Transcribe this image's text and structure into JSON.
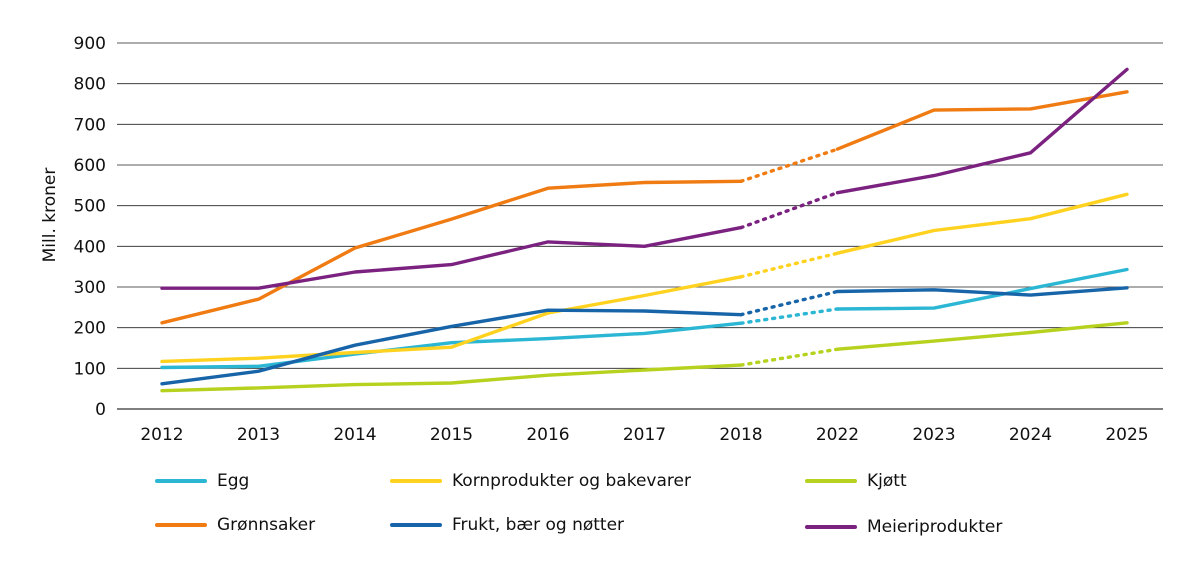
{
  "chart_data": {
    "type": "line",
    "ylabel": "Mill. kroner",
    "xlabel": "",
    "ylim": [
      0,
      900
    ],
    "yticks": [
      0,
      100,
      200,
      300,
      400,
      500,
      600,
      700,
      800,
      900
    ],
    "categories": [
      "2012",
      "2013",
      "2014",
      "2015",
      "2016",
      "2017",
      "2018",
      "2022",
      "2023",
      "2024",
      "2025"
    ],
    "gap_note_style": "dotted segment between 2018 and 2022",
    "grid": true,
    "legend_position": "bottom",
    "series": [
      {
        "name": "Egg",
        "color": "#2bb6d3",
        "values": [
          102,
          105,
          135,
          163,
          173,
          186,
          211,
          246,
          248,
          296,
          343
        ]
      },
      {
        "name": "Kornprodukter og bakevarer",
        "color": "#ffd21f",
        "values": [
          117,
          125,
          139,
          152,
          236,
          279,
          325,
          383,
          439,
          468,
          528
        ]
      },
      {
        "name": "Kjøtt",
        "color": "#b6d11e",
        "values": [
          45,
          52,
          60,
          64,
          83,
          96,
          108,
          147,
          167,
          188,
          212
        ]
      },
      {
        "name": "Grønnsaker",
        "color": "#ef7b12",
        "values": [
          212,
          270,
          396,
          467,
          543,
          557,
          560,
          639,
          735,
          738,
          780
        ]
      },
      {
        "name": "Frukt, bær og nøtter",
        "color": "#1765a8",
        "values": [
          62,
          93,
          157,
          203,
          243,
          241,
          232,
          289,
          293,
          280,
          298
        ]
      },
      {
        "name": "Meieriprodukter",
        "color": "#7b2281",
        "values": [
          297,
          297,
          337,
          355,
          411,
          400,
          446,
          532,
          574,
          630,
          835
        ]
      }
    ]
  }
}
